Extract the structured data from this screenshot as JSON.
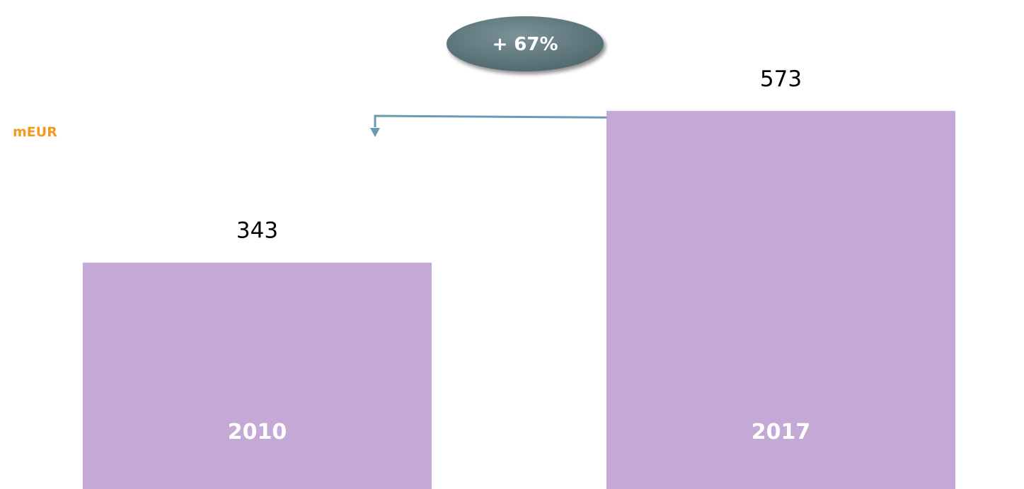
{
  "unit_label": "mEUR",
  "growth_label": "+ 67%",
  "colors": {
    "bar": "#C4A9D6",
    "bar_label": "#ffffff",
    "value_label": "#000000",
    "unit": "#F39A1E",
    "bubble": "#5F7A80",
    "arrow": "#6E99B4"
  },
  "chart_data": {
    "type": "bar",
    "categories": [
      "2010",
      "2017"
    ],
    "values": [
      343,
      573
    ],
    "title": "",
    "xlabel": "",
    "ylabel": "mEUR",
    "ylim": [
      0,
      741
    ],
    "grid": false,
    "annotations": [
      "+ 67%"
    ]
  }
}
